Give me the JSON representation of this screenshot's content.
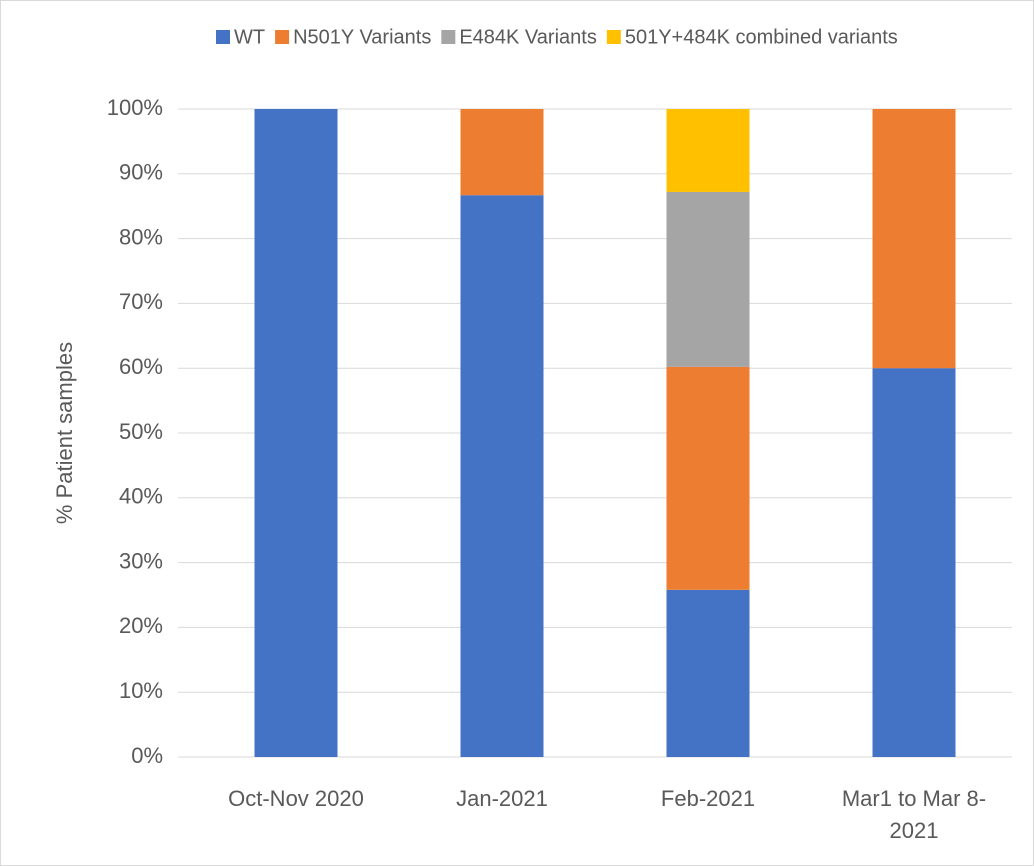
{
  "chart_data": {
    "type": "stacked_bar",
    "y_axis_label": "% Patient samples",
    "categories": [
      "Oct-Nov 2020",
      "Jan-2021",
      "Feb-2021",
      "Mar1 to Mar 8-2021"
    ],
    "series": [
      {
        "name": "WT",
        "color": "#4472c4",
        "values": [
          100,
          86.7,
          25.8,
          60
        ]
      },
      {
        "name": "N501Y Variants",
        "color": "#ed7d31",
        "values": [
          0,
          13.3,
          34.4,
          40
        ]
      },
      {
        "name": "E484K Variants",
        "color": "#a5a5a5",
        "values": [
          0,
          0,
          27,
          0
        ]
      },
      {
        "name": "501Y+484K combined variants",
        "color": "#ffc000",
        "values": [
          0,
          0,
          12.8,
          0
        ]
      }
    ],
    "ylim": [
      0,
      100
    ],
    "yticks": [
      {
        "value": 0,
        "label": "0%"
      },
      {
        "value": 10,
        "label": "10%"
      },
      {
        "value": 20,
        "label": "20%"
      },
      {
        "value": 30,
        "label": "30%"
      },
      {
        "value": 40,
        "label": "40%"
      },
      {
        "value": 50,
        "label": "50%"
      },
      {
        "value": 60,
        "label": "60%"
      },
      {
        "value": 70,
        "label": "70%"
      },
      {
        "value": 80,
        "label": "80%"
      },
      {
        "value": 90,
        "label": "90%"
      },
      {
        "value": 100,
        "label": "100%"
      }
    ],
    "grid": true,
    "legend": "top"
  }
}
